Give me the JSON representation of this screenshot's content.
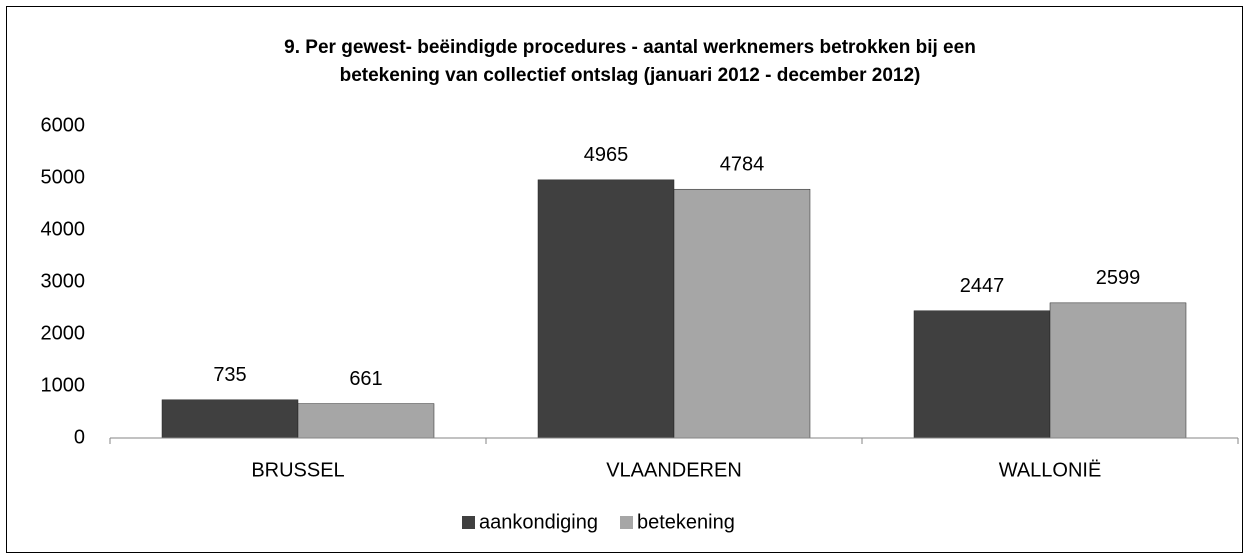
{
  "chart_data": {
    "type": "bar",
    "title": [
      "9. Per gewest- beëindigde procedures - aantal werknemers betrokken bij een",
      "betekening van collectief ontslag (januari 2012 - december 2012)"
    ],
    "categories": [
      "BRUSSEL",
      "VLAANDEREN",
      "WALLONIË"
    ],
    "series": [
      {
        "name": "aankondiging",
        "color": "#404040",
        "values": [
          735,
          4965,
          2447
        ]
      },
      {
        "name": "betekening",
        "color": "#a6a6a6",
        "values": [
          661,
          4784,
          2599
        ]
      }
    ],
    "ylim": [
      0,
      6000
    ],
    "yticks": [
      0,
      1000,
      2000,
      3000,
      4000,
      5000,
      6000
    ],
    "grid": false,
    "legend": "bottom",
    "value_labels_shown": true
  }
}
